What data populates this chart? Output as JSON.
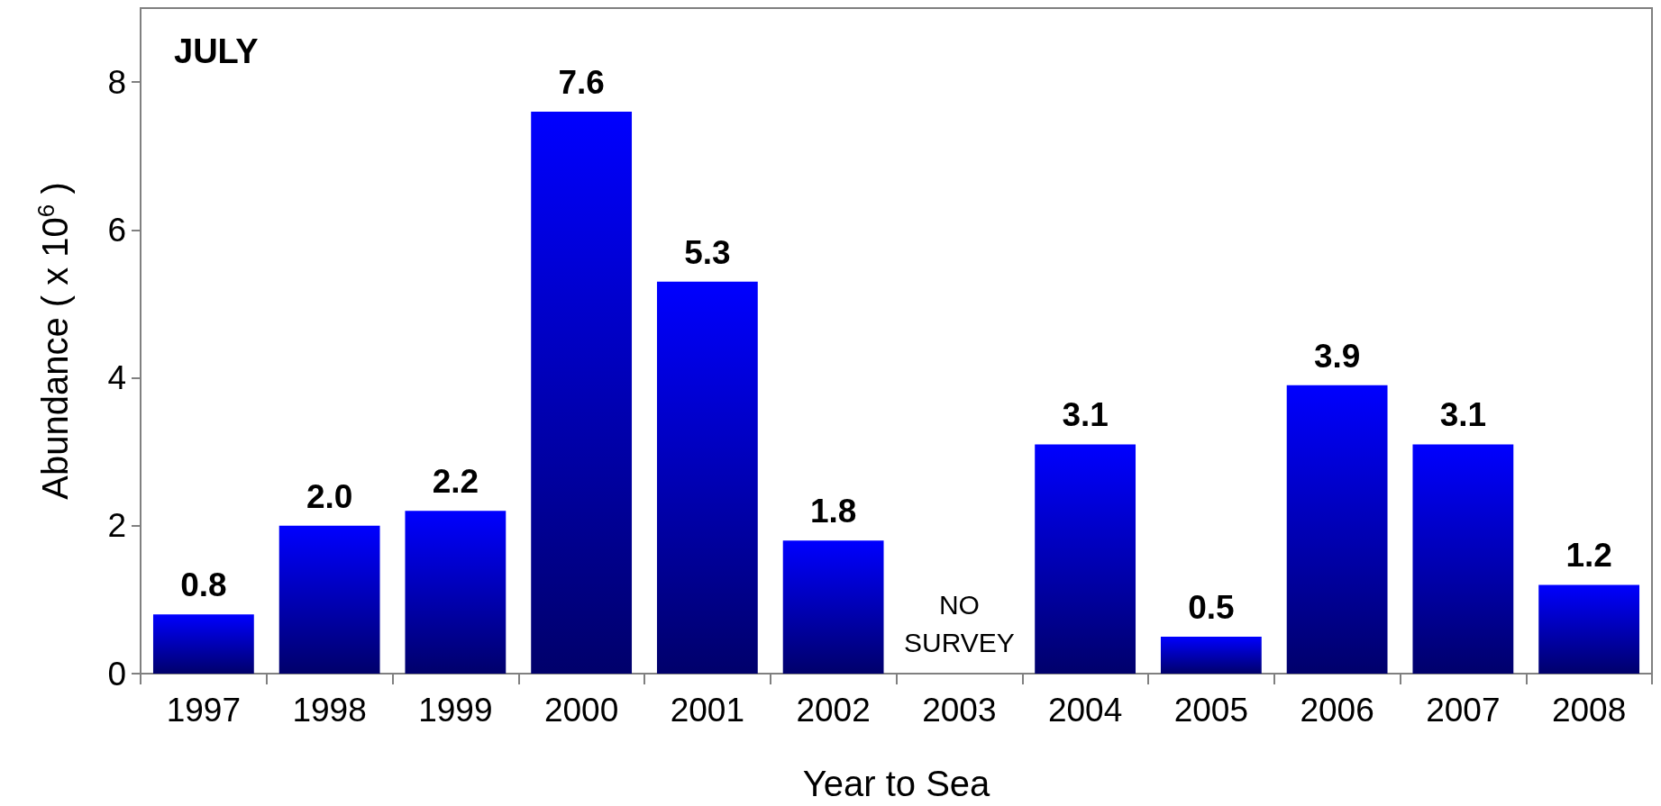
{
  "chart_data": {
    "type": "bar",
    "xlabel": "Year to Sea",
    "ylabel": "Abundance ( x 10$^{6}$ )",
    "categories": [
      "1997",
      "1998",
      "1999",
      "2000",
      "2001",
      "2002",
      "2003",
      "2004",
      "2005",
      "2006",
      "2007",
      "2008"
    ],
    "values": [
      0.8,
      2.0,
      2.2,
      7.6,
      5.3,
      1.8,
      null,
      3.1,
      0.5,
      3.9,
      3.1,
      1.2
    ],
    "value_labels": [
      "0.8",
      "2.0",
      "2.2",
      "7.6",
      "5.3",
      "1.8",
      null,
      "3.1",
      "0.5",
      "3.9",
      "3.1",
      "1.2"
    ],
    "color": "#0000ff",
    "ylim": [
      0,
      9
    ],
    "yticks": [
      0,
      2,
      4,
      6,
      8
    ],
    "grid": false,
    "annotations": [
      "JULY",
      "NO\nSURVEY"
    ]
  }
}
